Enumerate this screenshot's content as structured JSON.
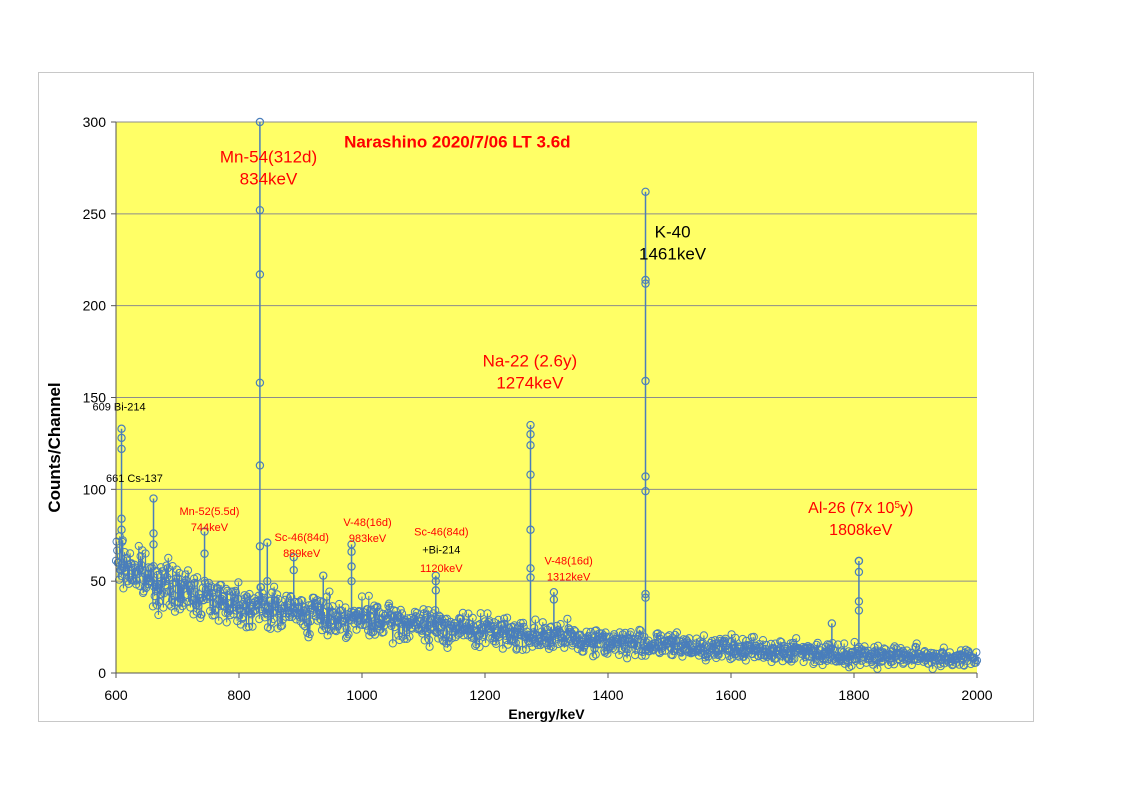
{
  "chart_data": {
    "type": "scatter",
    "title": "Narashino 2020/7/06 LT 3.6d",
    "xlabel": "Energy/keV",
    "ylabel": "Counts/Channel",
    "xlim": [
      600,
      2000
    ],
    "ylim": [
      0,
      300
    ],
    "xticks": [
      600,
      800,
      1000,
      1200,
      1400,
      1600,
      1800,
      2000
    ],
    "yticks": [
      0,
      50,
      100,
      150,
      200,
      250,
      300
    ],
    "grid": true,
    "plot_background": "#FFFF66",
    "marker_color": "#4A7EBB",
    "baseline": [
      [
        600,
        62
      ],
      [
        650,
        52
      ],
      [
        700,
        45
      ],
      [
        800,
        38
      ],
      [
        900,
        33
      ],
      [
        1000,
        29
      ],
      [
        1100,
        26
      ],
      [
        1200,
        23
      ],
      [
        1300,
        20
      ],
      [
        1400,
        17
      ],
      [
        1500,
        15
      ],
      [
        1600,
        13
      ],
      [
        1700,
        12
      ],
      [
        1800,
        10
      ],
      [
        1900,
        9
      ],
      [
        2000,
        8
      ]
    ],
    "peaks": [
      {
        "x": 609,
        "values": [
          133,
          128,
          122,
          84,
          78
        ]
      },
      {
        "x": 661,
        "values": [
          95,
          76,
          70
        ]
      },
      {
        "x": 744,
        "values": [
          77,
          65
        ]
      },
      {
        "x": 834,
        "values": [
          300,
          252,
          217,
          158,
          113,
          69
        ]
      },
      {
        "x": 846,
        "values": [
          71,
          50
        ]
      },
      {
        "x": 889,
        "values": [
          63,
          56
        ]
      },
      {
        "x": 937,
        "values": [
          53
        ]
      },
      {
        "x": 983,
        "values": [
          70,
          66,
          58,
          50
        ]
      },
      {
        "x": 1120,
        "values": [
          53,
          50,
          45
        ]
      },
      {
        "x": 1274,
        "values": [
          135,
          130,
          124,
          108,
          78,
          57,
          52
        ]
      },
      {
        "x": 1312,
        "values": [
          44,
          40
        ]
      },
      {
        "x": 1461,
        "values": [
          262,
          214,
          212,
          159,
          107,
          99,
          43,
          41
        ]
      },
      {
        "x": 1764,
        "values": [
          27
        ]
      },
      {
        "x": 1808,
        "values": [
          61,
          61,
          55,
          39,
          34
        ]
      }
    ],
    "annotations": [
      {
        "id": "title",
        "lines": [
          "Narashino 2020/7/06 LT 3.6d"
        ],
        "color": "#FF0000",
        "x": 1155,
        "y": 286
      },
      {
        "id": "mn54",
        "lines": [
          "Mn-54(312d)",
          "834keV"
        ],
        "color": "#FF0000",
        "x": 848,
        "y": 278
      },
      {
        "id": "k40",
        "lines": [
          "K-40",
          "1461keV"
        ],
        "color": "#000000",
        "x": 1505,
        "y": 237
      },
      {
        "id": "na22",
        "lines": [
          "Na-22 (2.6y)",
          "1274keV"
        ],
        "color": "#FF0000",
        "x": 1273,
        "y": 167
      },
      {
        "id": "al26",
        "lines": [
          "Al-26 (7x 10",
          "1808keV"
        ],
        "sup": "5",
        "suffix": "y)",
        "color": "#FF0000",
        "x": 1811,
        "y": 87
      },
      {
        "id": "bi214-609",
        "lines": [
          "609 Bi-214"
        ],
        "color": "#000000",
        "x": 605,
        "y": 143
      },
      {
        "id": "cs137",
        "lines": [
          "661 Cs-137"
        ],
        "color": "#000000",
        "x": 630,
        "y": 104
      },
      {
        "id": "mn52",
        "lines": [
          "Mn-52(5.5d)",
          "744keV"
        ],
        "color": "#FF0000",
        "x": 752,
        "y": 86
      },
      {
        "id": "sc46-889",
        "lines": [
          "Sc-46(84d)",
          "889keV"
        ],
        "color": "#FF0000",
        "x": 902,
        "y": 72
      },
      {
        "id": "v48-983",
        "lines": [
          "V-48(16d)",
          "983keV"
        ],
        "color": "#FF0000",
        "x": 1009,
        "y": 80
      },
      {
        "id": "sc46-1120",
        "lines": [
          "Sc-46(84d)"
        ],
        "color": "#FF0000",
        "x": 1129,
        "y": 75
      },
      {
        "id": "bi214-1120",
        "lines": [
          "+Bi-214"
        ],
        "color": "#000000",
        "x": 1129,
        "y": 65
      },
      {
        "id": "e1120",
        "lines": [
          "1120keV"
        ],
        "color": "#FF0000",
        "x": 1129,
        "y": 55
      },
      {
        "id": "v48-1312",
        "lines": [
          "V-48(16d)",
          "1312keV"
        ],
        "color": "#FF0000",
        "x": 1336,
        "y": 59
      }
    ]
  }
}
